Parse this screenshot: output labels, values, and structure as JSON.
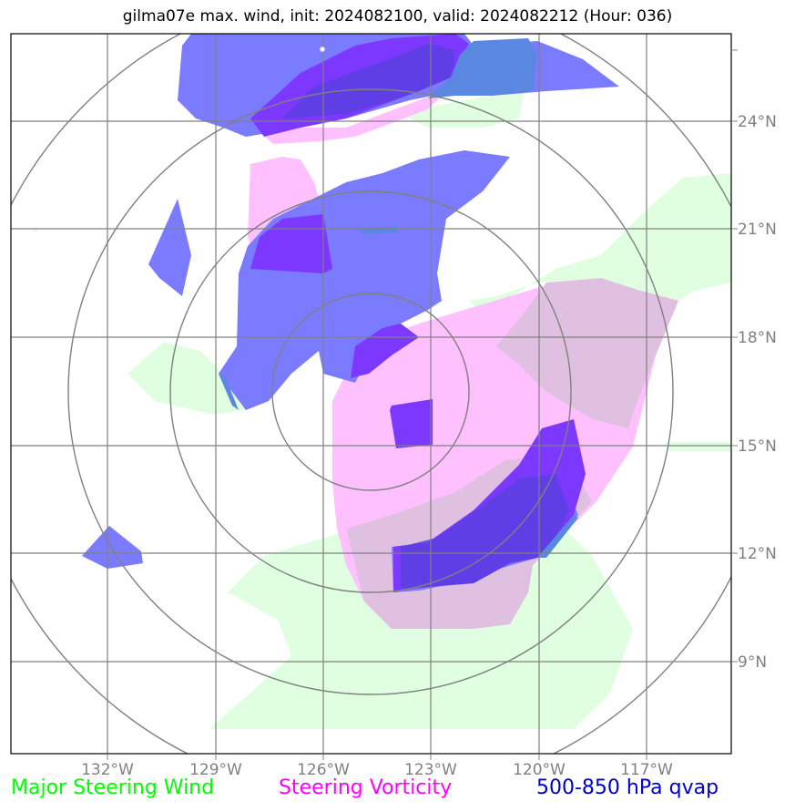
{
  "title": "gilma07e max. wind, init: 2024082100, valid: 2024082212 (Hour: 036)",
  "map": {
    "lon_ticks": [
      "132°W",
      "129°W",
      "126°W",
      "123°W",
      "120°W",
      "117°W"
    ],
    "lat_ticks": [
      "24°N",
      "21°N",
      "18°N",
      "15°N",
      "12°N",
      "9°N"
    ],
    "range_rings_count": 4
  },
  "legend": {
    "wind": {
      "label": "Major Steering Wind",
      "color": "#00ff00"
    },
    "vorticity": {
      "label": "Steering Vorticity",
      "color": "#ff00ff"
    },
    "qvap": {
      "label": "500-850 hPa qvap",
      "color": "#0000cc"
    }
  },
  "colors": {
    "wind_fill": "#e0ffe0",
    "vorticity_fill": "#ffc0ff",
    "qvap_fill": "#7b7bff",
    "qvap_dark_fill": "#7d38ff",
    "overlap_fill": "#e0c0e0",
    "grid": "#808080"
  }
}
